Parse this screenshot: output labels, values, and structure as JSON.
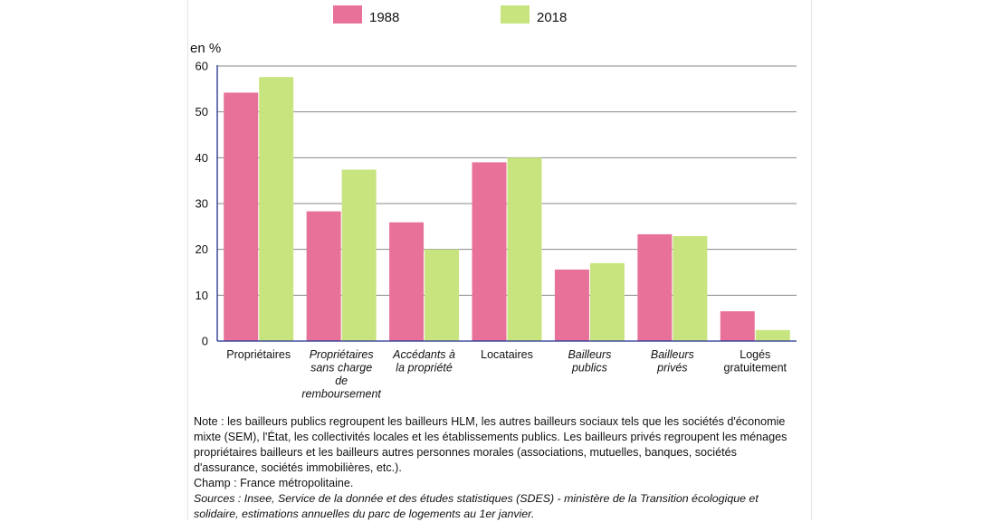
{
  "chart_data": {
    "type": "bar",
    "ylabel": "en %",
    "ylim": [
      0,
      60
    ],
    "yticks": [
      0,
      10,
      20,
      30,
      40,
      50,
      60
    ],
    "grid": true,
    "legend_position": "top",
    "categories": [
      {
        "lines": [
          "Propriétaires"
        ],
        "italic": false
      },
      {
        "lines": [
          "Propriétaires",
          "sans charge",
          "de",
          "remboursement"
        ],
        "italic": true
      },
      {
        "lines": [
          "Accédants à",
          "la propriété"
        ],
        "italic": true
      },
      {
        "lines": [
          "Locataires"
        ],
        "italic": false
      },
      {
        "lines": [
          "Bailleurs",
          "publics"
        ],
        "italic": true
      },
      {
        "lines": [
          "Bailleurs",
          "privés"
        ],
        "italic": true
      },
      {
        "lines": [
          "Logés",
          "gratuitement"
        ],
        "italic": false
      }
    ],
    "series": [
      {
        "name": "1988",
        "color": "#e8719a",
        "values": [
          54.2,
          28.3,
          25.9,
          39.0,
          15.6,
          23.3,
          6.5
        ]
      },
      {
        "name": "2018",
        "color": "#c8e47f",
        "values": [
          57.6,
          37.4,
          20.0,
          40.0,
          17.0,
          22.9,
          2.4
        ]
      }
    ]
  },
  "notes": {
    "note": "Note : les bailleurs publics regroupent les bailleurs HLM, les autres bailleurs sociaux tels que les sociétés d'économie mixte (SEM), l'État, les collectivités locales et les établissements publics. Les bailleurs privés regroupent les ménages propriétaires bailleurs et les bailleurs autres personnes morales (associations, mutuelles, banques, sociétés d'assurance, sociétés immobilières, etc.).",
    "champ": "Champ : France métropolitaine.",
    "sources": "Sources : Insee, Service de la donnée et des études statistiques (SDES) - ministère de la Transition écologique et solidaire, estimations annuelles du parc de logements au 1er janvier."
  }
}
